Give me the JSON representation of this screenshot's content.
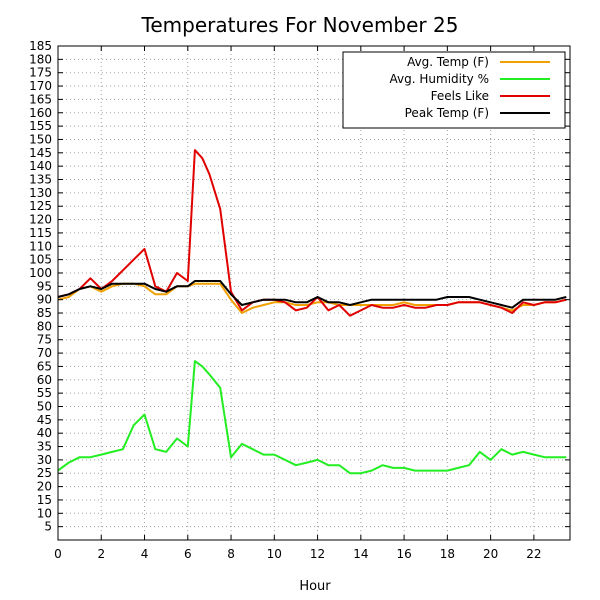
{
  "chart_data": {
    "type": "line",
    "title": "Temperatures For November 25",
    "xlabel": "Hour",
    "ylabel": "",
    "xlim": [
      0,
      23.67
    ],
    "ylim": [
      0,
      185
    ],
    "xticks": [
      "0",
      "2",
      "4",
      "6",
      "8",
      "10",
      "12",
      "14",
      "16",
      "18",
      "20",
      "22"
    ],
    "yticks": [
      "5",
      "10",
      "15",
      "20",
      "25",
      "30",
      "35",
      "40",
      "45",
      "50",
      "55",
      "60",
      "65",
      "70",
      "75",
      "80",
      "85",
      "90",
      "95",
      "100",
      "105",
      "110",
      "115",
      "120",
      "125",
      "130",
      "135",
      "140",
      "145",
      "150",
      "155",
      "160",
      "165",
      "170",
      "175",
      "180",
      "185"
    ],
    "grid": true,
    "legend_position": "top-right",
    "x": [
      0,
      0.5,
      1,
      1.5,
      2,
      2.5,
      3,
      3.5,
      4,
      4.5,
      5,
      5.5,
      6,
      6.33,
      6.67,
      7,
      7.5,
      8,
      8.5,
      9,
      9.5,
      10,
      10.5,
      11,
      11.5,
      12,
      12.5,
      13,
      13.5,
      14,
      14.5,
      15,
      15.5,
      16,
      16.5,
      17,
      17.5,
      18,
      18.5,
      19,
      19.5,
      20,
      20.5,
      21,
      21.5,
      22,
      22.5,
      23,
      23.5
    ],
    "series": [
      {
        "name": "Avg. Temp (F)",
        "color": "#f0a000",
        "values": [
          90,
          91,
          94,
          95,
          93,
          95,
          96,
          96,
          95,
          92,
          92,
          95,
          95,
          96,
          96,
          96,
          96,
          90,
          85,
          87,
          88,
          89,
          89,
          88,
          88,
          89,
          89,
          88,
          88,
          88,
          88,
          88,
          88,
          89,
          88,
          88,
          88,
          88,
          89,
          89,
          89,
          88,
          87,
          86,
          88,
          88,
          89,
          89,
          90
        ]
      },
      {
        "name": "Avg. Humidity %",
        "color": "#22ee22",
        "values": [
          26,
          29,
          31,
          31,
          32,
          33,
          34,
          43,
          47,
          34,
          33,
          38,
          35,
          67,
          65,
          62,
          57,
          31,
          36,
          34,
          32,
          32,
          30,
          28,
          29,
          30,
          28,
          28,
          25,
          25,
          26,
          28,
          27,
          27,
          26,
          26,
          26,
          26,
          27,
          28,
          33,
          30,
          34,
          32,
          33,
          32,
          31,
          31,
          31
        ]
      },
      {
        "name": "Feels Like",
        "color": "#e00000",
        "values": [
          91,
          92,
          94,
          98,
          94,
          97,
          101,
          105,
          109,
          95,
          93,
          100,
          97,
          146,
          143,
          137,
          124,
          93,
          86,
          89,
          90,
          90,
          89,
          86,
          87,
          91,
          86,
          88,
          84,
          86,
          88,
          87,
          87,
          88,
          87,
          87,
          88,
          88,
          89,
          89,
          89,
          88,
          87,
          85,
          89,
          88,
          89,
          89,
          90
        ]
      },
      {
        "name": "Peak Temp (F)",
        "color": "#000000",
        "values": [
          91,
          92,
          94,
          95,
          94,
          96,
          96,
          96,
          96,
          94,
          93,
          95,
          95,
          97,
          97,
          97,
          97,
          92,
          88,
          89,
          90,
          90,
          90,
          89,
          89,
          91,
          89,
          89,
          88,
          89,
          90,
          90,
          90,
          90,
          90,
          90,
          90,
          91,
          91,
          91,
          90,
          89,
          88,
          87,
          90,
          90,
          90,
          90,
          91
        ]
      }
    ]
  }
}
